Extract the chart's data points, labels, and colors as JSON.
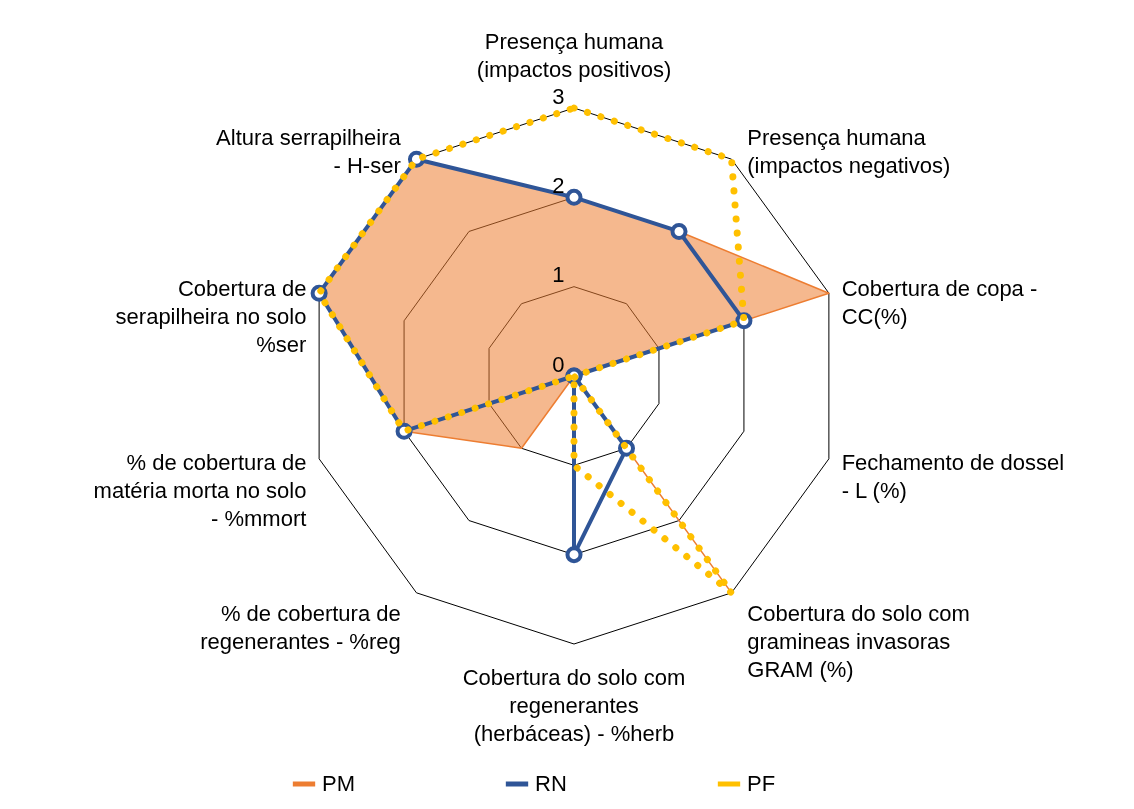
{
  "chart_data": {
    "type": "radar",
    "categories": [
      "Presença humana (impactos positivos)",
      "Presença humana (impactos negativos)",
      "Cobertura de copa - CC(%)",
      "Fechamento de dossel - L (%)",
      "Cobertura do solo com gramineas invasoras GRAM (%)",
      "Cobertura do solo com regenerantes (herbáceas) - %herb",
      "% de cobertura de regenerantes - %reg",
      "% de cobertura de matéria morta no solo - %mmort",
      "Cobertura de serapilheira no solo %ser",
      "Altura serrapilheira - H-ser"
    ],
    "series": [
      {
        "name": "PM",
        "type": "area",
        "color": "#ed7d31",
        "marker": "none",
        "line_style": "solid",
        "values": [
          2,
          2,
          3,
          0,
          3,
          0,
          1,
          2,
          3,
          3
        ]
      },
      {
        "name": "RN",
        "color": "#2f5597",
        "marker": "circle",
        "line_style": "solid",
        "values": [
          2,
          2,
          2,
          0,
          1,
          2,
          0,
          2,
          3,
          3
        ]
      },
      {
        "name": "PF",
        "color": "#ffc000",
        "marker": "none",
        "line_style": "dotted",
        "values": [
          3,
          3,
          2,
          0,
          3,
          1,
          0,
          2,
          3,
          3
        ]
      }
    ],
    "ylim": [
      0,
      3
    ],
    "yticks": [
      0,
      1,
      2,
      3
    ],
    "grid": true,
    "legend": "bottom"
  }
}
